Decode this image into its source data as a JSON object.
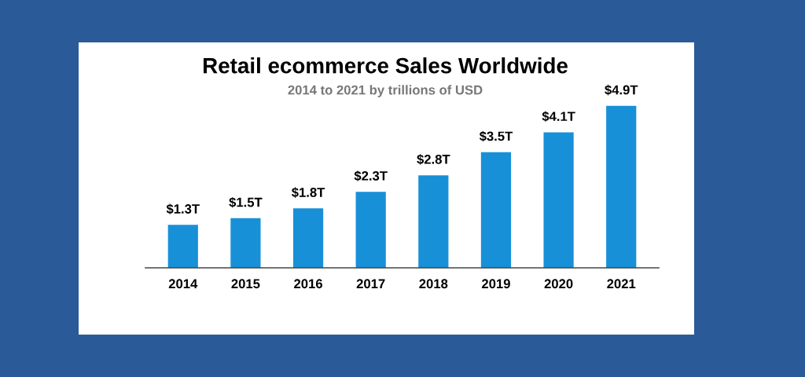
{
  "chart_data": {
    "type": "bar",
    "title": "Retail ecommerce Sales Worldwide",
    "subtitle": "2014 to 2021 by trillions of USD",
    "categories": [
      "2014",
      "2015",
      "2016",
      "2017",
      "2018",
      "2019",
      "2020",
      "2021"
    ],
    "values": [
      1.3,
      1.5,
      1.8,
      2.3,
      2.8,
      3.5,
      4.1,
      4.9
    ],
    "value_labels": [
      "$1.3T",
      "$1.5T",
      "$1.8T",
      "$2.3T",
      "$2.8T",
      "$3.5T",
      "$4.1T",
      "$4.9T"
    ],
    "color": "#1890d8",
    "grid": false,
    "legend": false,
    "tick_labels": "x"
  }
}
